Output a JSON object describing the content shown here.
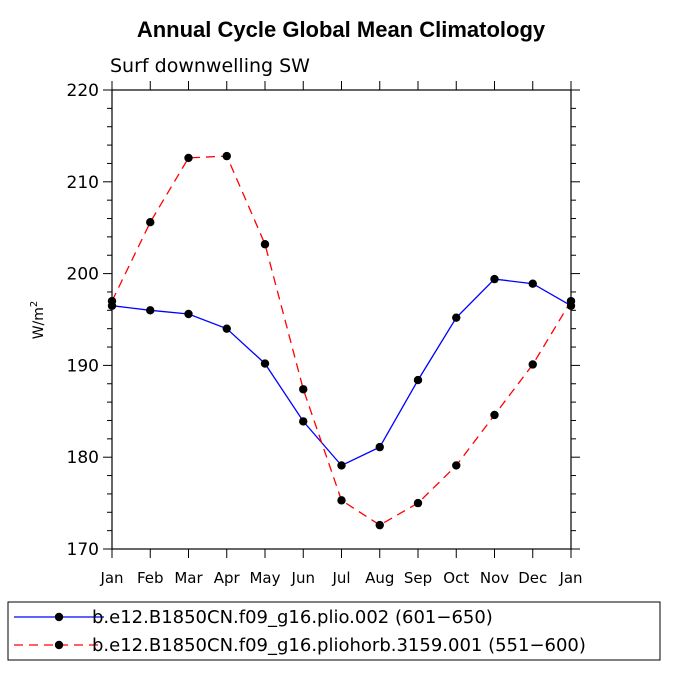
{
  "chart_data": {
    "type": "line",
    "title": "Annual Cycle Global Mean Climatology",
    "subtitle": "Surf downwelling SW",
    "ylabel_base": "W/m",
    "ylabel_sup": "2",
    "xlabel": "",
    "categories": [
      "Jan",
      "Feb",
      "Mar",
      "Apr",
      "May",
      "Jun",
      "Jul",
      "Aug",
      "Sep",
      "Oct",
      "Nov",
      "Dec",
      "Jan"
    ],
    "ylim": [
      170,
      220
    ],
    "yticks": [
      170,
      180,
      190,
      200,
      210,
      220
    ],
    "series": [
      {
        "name": "b.e12.B1850CN.f09_g16.plio.002 (601−650)",
        "color": "#0000ff",
        "dash": "solid",
        "values": [
          196.5,
          196.0,
          195.6,
          194.0,
          190.2,
          183.9,
          179.1,
          181.1,
          188.4,
          195.2,
          199.4,
          198.9,
          196.5
        ]
      },
      {
        "name": "b.e12.B1850CN.f09_g16.pliohorb.3159.001 (551−600)",
        "color": "#ff0000",
        "dash": "dashed",
        "values": [
          197.0,
          205.6,
          212.6,
          212.8,
          203.2,
          187.4,
          175.3,
          172.6,
          175.0,
          179.1,
          184.6,
          190.1,
          197.0
        ]
      }
    ]
  }
}
